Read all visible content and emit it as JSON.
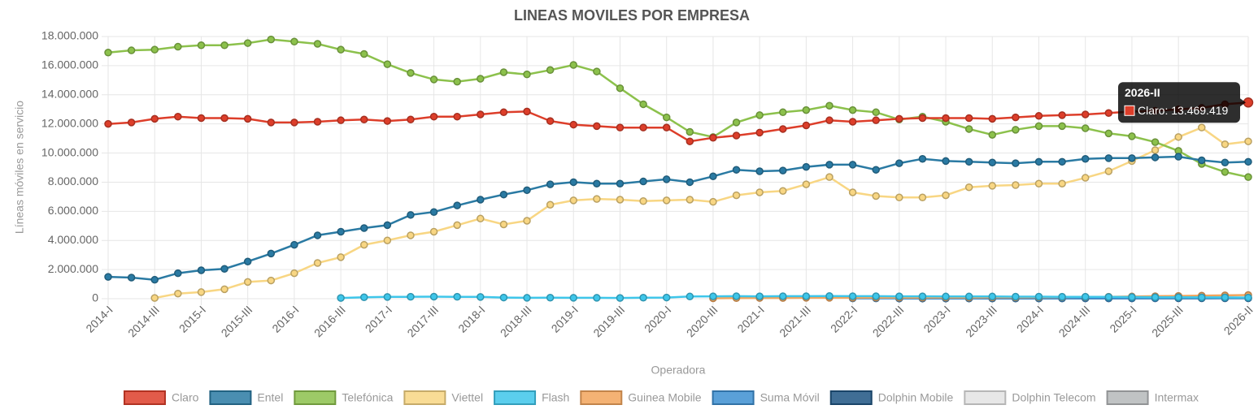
{
  "chart_data": {
    "type": "line",
    "title": "LINEAS MOVILES POR EMPRESA",
    "y_label": "Líneas móviles en servicio",
    "x_label": "Operadora",
    "grid": true,
    "legend": "bottom",
    "categories": [
      "2014-I",
      null,
      "2014-III",
      null,
      "2015-I",
      null,
      "2015-III",
      null,
      "2016-I",
      null,
      "2016-III",
      null,
      "2017-I",
      null,
      "2017-III",
      null,
      "2018-I",
      null,
      "2018-III",
      null,
      "2019-I",
      null,
      "2019-III",
      null,
      "2020-I",
      null,
      "2020-III",
      null,
      "2021-I",
      null,
      "2021-III",
      null,
      "2022-I",
      null,
      "2022-III",
      null,
      "2023-I",
      null,
      "2023-III",
      null,
      "2024-I",
      null,
      "2024-III",
      null,
      "2025-I",
      null,
      "2025-III",
      null,
      null,
      "2026-II"
    ],
    "ylim": [
      0,
      18000000
    ],
    "yticks": [
      {
        "value": 0,
        "label": "0"
      },
      {
        "value": 2000000,
        "label": "2.000.000"
      },
      {
        "value": 4000000,
        "label": "4.000.000"
      },
      {
        "value": 6000000,
        "label": "6.000.000"
      },
      {
        "value": 8000000,
        "label": "8.000.000"
      },
      {
        "value": 10000000,
        "label": "10.000.000"
      },
      {
        "value": 12000000,
        "label": "12.000.000"
      },
      {
        "value": 14000000,
        "label": "14.000.000"
      },
      {
        "value": 16000000,
        "label": "16.000.000"
      },
      {
        "value": 18000000,
        "label": "18.000.000"
      }
    ],
    "series": [
      {
        "name": "Claro",
        "color": "#dd3e2a",
        "values": [
          12000000,
          12100000,
          12350000,
          12500000,
          12400000,
          12400000,
          12350000,
          12100000,
          12100000,
          12150000,
          12250000,
          12300000,
          12200000,
          12300000,
          12500000,
          12500000,
          12650000,
          12800000,
          12850000,
          12200000,
          11950000,
          11850000,
          11750000,
          11750000,
          11750000,
          10800000,
          11050000,
          11200000,
          11400000,
          11650000,
          11900000,
          12250000,
          12150000,
          12250000,
          12350000,
          12400000,
          12400000,
          12400000,
          12350000,
          12450000,
          12550000,
          12600000,
          12650000,
          12750000,
          12850000,
          12900000,
          13000000,
          13100000,
          13350000,
          13469419
        ]
      },
      {
        "name": "Entel",
        "color": "#2a7aa3",
        "values": [
          1500000,
          1450000,
          1300000,
          1750000,
          1950000,
          2050000,
          2550000,
          3100000,
          3700000,
          4350000,
          4600000,
          4850000,
          5050000,
          5750000,
          5950000,
          6400000,
          6800000,
          7150000,
          7450000,
          7850000,
          8000000,
          7900000,
          7900000,
          8050000,
          8200000,
          8000000,
          8400000,
          8850000,
          8750000,
          8800000,
          9050000,
          9200000,
          9200000,
          8850000,
          9300000,
          9600000,
          9450000,
          9400000,
          9350000,
          9300000,
          9400000,
          9400000,
          9600000,
          9650000,
          9650000,
          9700000,
          9750000,
          9500000,
          9350000,
          9400000
        ]
      },
      {
        "name": "Telefónica",
        "color": "#8cc14c",
        "values": [
          16900000,
          17050000,
          17100000,
          17300000,
          17400000,
          17400000,
          17550000,
          17800000,
          17650000,
          17500000,
          17100000,
          16800000,
          16100000,
          15500000,
          15050000,
          14900000,
          15100000,
          15550000,
          15400000,
          15700000,
          16050000,
          15600000,
          14450000,
          13350000,
          12450000,
          11450000,
          11100000,
          12100000,
          12600000,
          12800000,
          12950000,
          13250000,
          12950000,
          12800000,
          12300000,
          12500000,
          12150000,
          11650000,
          11250000,
          11600000,
          11850000,
          11850000,
          11700000,
          11350000,
          11150000,
          10750000,
          10150000,
          9250000,
          8700000,
          8350000
        ]
      },
      {
        "name": "Viettel",
        "color": "#f8d683",
        "values": [
          null,
          null,
          50000,
          350000,
          450000,
          650000,
          1150000,
          1250000,
          1750000,
          2450000,
          2850000,
          3700000,
          4000000,
          4350000,
          4600000,
          5050000,
          5500000,
          5100000,
          5350000,
          6450000,
          6750000,
          6850000,
          6800000,
          6700000,
          6750000,
          6800000,
          6650000,
          7100000,
          7300000,
          7400000,
          7850000,
          8350000,
          7300000,
          7050000,
          6950000,
          6950000,
          7100000,
          7650000,
          7750000,
          7800000,
          7900000,
          7900000,
          8300000,
          8750000,
          9450000,
          10200000,
          11100000,
          11750000,
          10600000,
          10800000
        ]
      },
      {
        "name": "Flash",
        "color": "#3ec6ea",
        "values": [
          null,
          null,
          null,
          null,
          null,
          null,
          null,
          null,
          null,
          null,
          50000,
          100000,
          120000,
          130000,
          140000,
          130000,
          120000,
          80000,
          60000,
          70000,
          60000,
          60000,
          50000,
          70000,
          80000,
          150000,
          160000,
          170000,
          160000,
          170000,
          170000,
          180000,
          170000,
          170000,
          160000,
          160000,
          150000,
          150000,
          150000,
          140000,
          140000,
          130000,
          130000,
          120000,
          110000,
          100000,
          100000,
          90000,
          90000,
          80000
        ]
      },
      {
        "name": "Guinea Mobile",
        "color": "#f2a55c",
        "values": [
          null,
          null,
          null,
          null,
          null,
          null,
          null,
          null,
          null,
          null,
          null,
          null,
          null,
          null,
          null,
          null,
          null,
          null,
          null,
          null,
          null,
          null,
          null,
          null,
          null,
          null,
          30000,
          40000,
          50000,
          50000,
          60000,
          60000,
          60000,
          70000,
          70000,
          70000,
          80000,
          80000,
          90000,
          90000,
          100000,
          110000,
          120000,
          130000,
          150000,
          170000,
          190000,
          210000,
          230000,
          250000
        ]
      },
      {
        "name": "Suma Móvil",
        "color": "#3d8fd1",
        "values": [
          null,
          null,
          null,
          null,
          null,
          null,
          null,
          null,
          null,
          null,
          null,
          null,
          null,
          null,
          null,
          null,
          null,
          null,
          null,
          null,
          null,
          null,
          null,
          null,
          null,
          null,
          null,
          null,
          null,
          null,
          null,
          null,
          20000,
          20000,
          20000,
          25000,
          25000,
          25000,
          30000,
          30000,
          30000,
          30000,
          35000,
          35000,
          35000,
          35000,
          40000,
          40000,
          40000,
          40000
        ]
      },
      {
        "name": "Dolphin Mobile",
        "color": "#1f5582",
        "values": [
          null,
          null,
          null,
          null,
          null,
          null,
          null,
          null,
          null,
          null,
          null,
          null,
          null,
          null,
          null,
          null,
          null,
          null,
          null,
          null,
          null,
          null,
          null,
          null,
          null,
          null,
          null,
          null,
          null,
          null,
          null,
          null,
          null,
          null,
          10000,
          10000,
          10000,
          15000,
          15000,
          15000,
          15000,
          20000,
          20000,
          20000,
          20000,
          25000,
          25000,
          25000,
          30000,
          30000
        ]
      },
      {
        "name": "Dolphin Telecom",
        "color": "#e3e3e3",
        "values": [
          null,
          null,
          null,
          null,
          null,
          null,
          null,
          null,
          null,
          null,
          null,
          null,
          null,
          null,
          null,
          null,
          null,
          null,
          null,
          null,
          null,
          null,
          null,
          null,
          null,
          null,
          null,
          null,
          null,
          null,
          null,
          null,
          null,
          null,
          null,
          null,
          null,
          null,
          null,
          null,
          null,
          null,
          null,
          null,
          null,
          null,
          null,
          null,
          null,
          null
        ]
      },
      {
        "name": "Intermax",
        "color": "#b5b8ba",
        "values": [
          null,
          null,
          null,
          null,
          null,
          null,
          null,
          null,
          null,
          null,
          null,
          null,
          null,
          null,
          null,
          null,
          null,
          null,
          null,
          null,
          null,
          null,
          null,
          null,
          null,
          null,
          null,
          null,
          null,
          null,
          null,
          null,
          null,
          null,
          null,
          null,
          null,
          null,
          null,
          null,
          null,
          null,
          null,
          null,
          null,
          null,
          null,
          null,
          null,
          null
        ]
      }
    ],
    "tooltip": {
      "title": "2026-II",
      "text": "Claro: 13.469.419"
    }
  }
}
